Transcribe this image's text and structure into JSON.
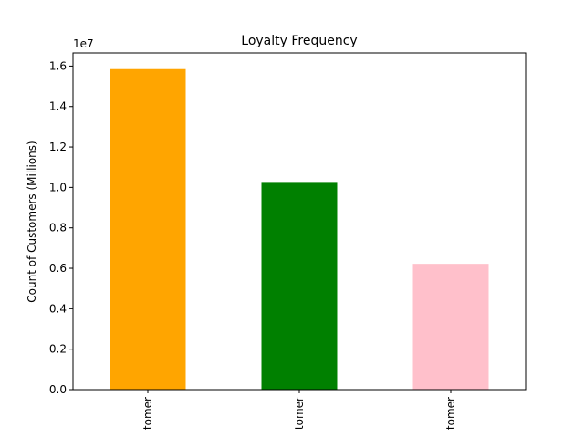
{
  "chart_data": {
    "type": "bar",
    "title": "Loyalty Frequency",
    "xlabel": "",
    "ylabel": "Count of Customers (Millions)",
    "y_offset_label": "1e7",
    "categories": [
      "tomer",
      "tomer",
      "tomer"
    ],
    "values": [
      15850000,
      10270000,
      6220000
    ],
    "colors": [
      "#ffa500",
      "#008000",
      "#ffc0cb"
    ],
    "ylim": [
      0,
      16650000
    ],
    "yticks": [
      0,
      2000000,
      4000000,
      6000000,
      8000000,
      10000000,
      12000000,
      14000000,
      16000000
    ],
    "ytick_labels": [
      "0.0",
      "0.2",
      "0.4",
      "0.6",
      "0.8",
      "1.0",
      "1.2",
      "1.4",
      "1.6"
    ],
    "grid": false,
    "legend": "none"
  }
}
